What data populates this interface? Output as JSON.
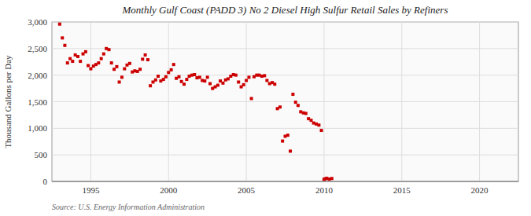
{
  "chart_data": {
    "type": "scatter",
    "title": "Monthly Gulf Coast (PADD 3) No 2 Diesel High Sulfur Retail Sales by Refiners",
    "ylabel": "Thousand Gallons per Day",
    "source": "Source: U.S. Energy Information Administration",
    "color": "#cc0000",
    "marker": "square",
    "grid": true,
    "xlim": [
      1992.5,
      2022.5
    ],
    "ylim": [
      0,
      3000
    ],
    "xticks": [
      1995,
      2000,
      2005,
      2010,
      2015,
      2020
    ],
    "yticks": [
      0,
      500,
      {
        "value": 1000,
        "label": "1,000"
      },
      {
        "value": 1500,
        "label": "1,500"
      },
      {
        "value": 2000,
        "label": "2,000"
      },
      {
        "value": 2500,
        "label": "2,500"
      },
      {
        "value": 3000,
        "label": "3,000"
      }
    ],
    "x": [
      1993.0,
      1993.17,
      1993.33,
      1993.5,
      1993.67,
      1993.83,
      1994.0,
      1994.17,
      1994.33,
      1994.5,
      1994.67,
      1994.83,
      1995.0,
      1995.17,
      1995.33,
      1995.5,
      1995.67,
      1995.83,
      1996.0,
      1996.17,
      1996.33,
      1996.5,
      1996.67,
      1996.83,
      1997.0,
      1997.17,
      1997.33,
      1997.5,
      1997.67,
      1997.83,
      1998.0,
      1998.17,
      1998.33,
      1998.5,
      1998.67,
      1998.83,
      1999.0,
      1999.17,
      1999.33,
      1999.5,
      1999.67,
      1999.83,
      2000.0,
      2000.17,
      2000.33,
      2000.5,
      2000.67,
      2000.83,
      2001.0,
      2001.17,
      2001.33,
      2001.5,
      2001.67,
      2001.83,
      2002.0,
      2002.17,
      2002.33,
      2002.5,
      2002.67,
      2002.83,
      2003.0,
      2003.17,
      2003.33,
      2003.5,
      2003.67,
      2003.83,
      2004.0,
      2004.17,
      2004.33,
      2004.5,
      2004.67,
      2004.83,
      2005.0,
      2005.17,
      2005.33,
      2005.5,
      2005.67,
      2005.83,
      2006.0,
      2006.17,
      2006.33,
      2006.5,
      2006.67,
      2006.83,
      2007.0,
      2007.17,
      2007.33,
      2007.5,
      2007.67,
      2007.83,
      2008.0,
      2008.17,
      2008.33,
      2008.5,
      2008.67,
      2008.83,
      2009.0,
      2009.17,
      2009.33,
      2009.5,
      2009.67,
      2009.83,
      2010.0,
      2010.08,
      2010.17,
      2010.33,
      2010.5
    ],
    "values": [
      2960,
      2700,
      2560,
      2230,
      2310,
      2260,
      2380,
      2350,
      2260,
      2400,
      2440,
      2180,
      2120,
      2170,
      2200,
      2230,
      2310,
      2400,
      2500,
      2480,
      2230,
      2110,
      2160,
      1870,
      1960,
      2120,
      2190,
      2220,
      2060,
      2080,
      2070,
      2110,
      2300,
      2380,
      2290,
      1800,
      1870,
      1910,
      1980,
      1890,
      1920,
      1970,
      2050,
      2100,
      2200,
      1940,
      1970,
      1880,
      1830,
      1920,
      1980,
      2000,
      2010,
      1950,
      1960,
      1900,
      1890,
      1960,
      1840,
      1750,
      1780,
      1810,
      1890,
      1850,
      1910,
      1930,
      1980,
      2010,
      2000,
      1870,
      1780,
      1820,
      1900,
      1960,
      1560,
      1970,
      2000,
      2000,
      1980,
      1990,
      1900,
      1840,
      1860,
      1830,
      1370,
      1400,
      760,
      850,
      870,
      570,
      1640,
      1490,
      1430,
      1310,
      1290,
      1280,
      1180,
      1150,
      1100,
      1080,
      1060,
      960,
      40,
      50,
      60,
      45,
      55
    ]
  }
}
